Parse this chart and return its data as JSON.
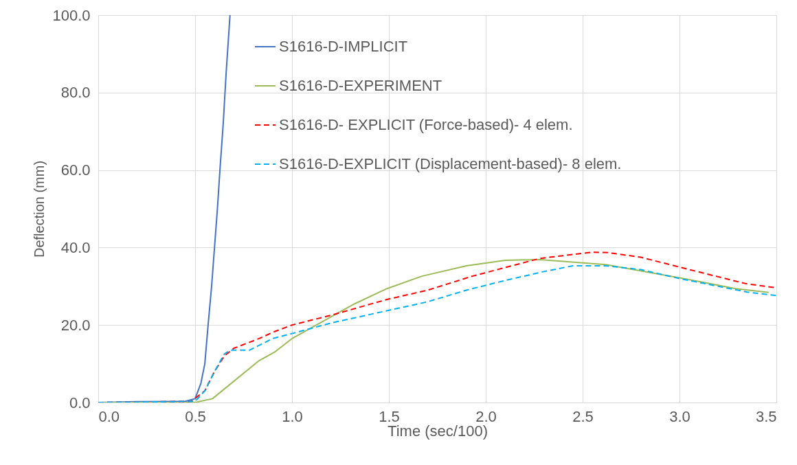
{
  "chart_data": {
    "type": "line",
    "xlabel": "Time (sec/100)",
    "ylabel": "Deflection (mm)",
    "xlim": [
      0,
      3.5
    ],
    "ylim": [
      0,
      100
    ],
    "xticks": [
      {
        "value": 0,
        "label": "0.0"
      },
      {
        "value": 0.5,
        "label": "0.5"
      },
      {
        "value": 1,
        "label": "1.0"
      },
      {
        "value": 1.5,
        "label": "1.5"
      },
      {
        "value": 2,
        "label": "2.0"
      },
      {
        "value": 2.5,
        "label": "2.5"
      },
      {
        "value": 3,
        "label": "3.0"
      },
      {
        "value": 3.5,
        "label": "3.5"
      }
    ],
    "yticks": [
      {
        "value": 0,
        "label": "0.0"
      },
      {
        "value": 20,
        "label": "20.0"
      },
      {
        "value": 40,
        "label": "40.0"
      },
      {
        "value": 60,
        "label": "60.0"
      },
      {
        "value": 80,
        "label": "80.0"
      },
      {
        "value": 100,
        "label": "100.0"
      }
    ],
    "grid": true,
    "legend": "top right",
    "series": [
      {
        "name": "S1616-D-IMPLICIT",
        "color": "#4472c4",
        "line_style": "solid",
        "x": [
          0,
          0.2,
          0.45,
          0.5,
          0.53,
          0.55,
          0.567,
          0.585,
          0.6,
          0.615,
          0.628,
          0.645,
          0.66,
          0.68
        ],
        "values": [
          0,
          0.2,
          0.3,
          1,
          5,
          10,
          20,
          30,
          40,
          50,
          60,
          72,
          85,
          100
        ]
      },
      {
        "name": "S1616-D-EXPERIMENT",
        "color": "#9bbb59",
        "line_style": "solid",
        "x": [
          0,
          0.5,
          0.59,
          0.83,
          0.91,
          1.0,
          1.32,
          1.49,
          1.67,
          1.9,
          2.1,
          2.28,
          2.62,
          3.01,
          3.29,
          3.46
        ],
        "values": [
          0,
          0,
          1,
          10.8,
          13,
          16.5,
          25.4,
          29.4,
          32.6,
          35.3,
          36.7,
          36.9,
          35.6,
          32.1,
          29.4,
          28.4
        ]
      },
      {
        "name": "S1616-D- EXPLICIT (Force-based)- 4 elem.",
        "color": "#ff0000",
        "line_style": "dashed",
        "x": [
          0,
          0.48,
          0.55,
          0.6,
          0.65,
          0.7,
          0.83,
          0.91,
          1.0,
          1.2,
          1.49,
          1.7,
          1.93,
          2.28,
          2.55,
          2.63,
          2.8,
          3.02,
          3.34,
          3.5
        ],
        "values": [
          0,
          0.3,
          3,
          8,
          12,
          14,
          16.5,
          18.3,
          20,
          22.5,
          26.6,
          29,
          32.6,
          37.2,
          38.8,
          38.7,
          37.5,
          34.7,
          30.7,
          29.6
        ]
      },
      {
        "name": "S1616-D-EXPLICIT (Displacement-based)- 8 elem.",
        "color": "#00b0f0",
        "line_style": "dashed",
        "x": [
          0,
          0.5,
          0.55,
          0.6,
          0.65,
          0.68,
          0.78,
          0.9,
          1.0,
          1.2,
          1.5,
          1.7,
          1.9,
          2.1,
          2.3,
          2.45,
          2.62,
          2.8,
          3.0,
          3.2,
          3.35,
          3.5
        ],
        "values": [
          0,
          0.3,
          3,
          8,
          12.5,
          13.5,
          13.5,
          16.5,
          17.8,
          20.5,
          23.8,
          26,
          29,
          31.5,
          33.8,
          35.3,
          35.3,
          34.3,
          32,
          30,
          28.5,
          27.6
        ]
      }
    ]
  }
}
